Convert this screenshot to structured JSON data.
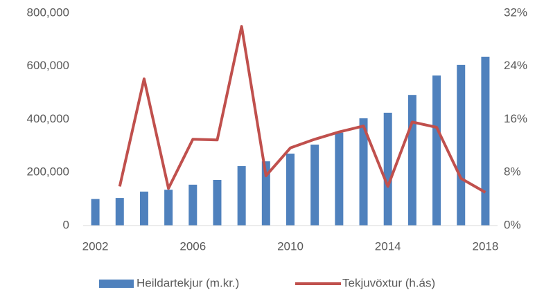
{
  "chart_data": {
    "type": "bar-line",
    "x": [
      2002,
      2003,
      2004,
      2005,
      2006,
      2007,
      2008,
      2009,
      2010,
      2011,
      2012,
      2013,
      2014,
      2015,
      2016,
      2017,
      2018
    ],
    "xlim": [
      2001.5,
      2018.5
    ],
    "xticks": [
      2002,
      2006,
      2010,
      2014,
      2018
    ],
    "ylim": [
      0,
      800000
    ],
    "yticks": [
      0,
      {
        "value": 200000,
        "label": "200,000"
      },
      {
        "value": 400000,
        "label": "400,000"
      },
      {
        "value": 600000,
        "label": "600,000"
      },
      {
        "value": 800000,
        "label": "800,000"
      }
    ],
    "y2lim": [
      0,
      32
    ],
    "y2ticks": [
      {
        "value": 0,
        "label": "0%"
      },
      {
        "value": 8,
        "label": "8%"
      },
      {
        "value": 16,
        "label": "16%"
      },
      {
        "value": 24,
        "label": "24%"
      },
      {
        "value": 32,
        "label": "32%"
      }
    ],
    "legend": "bottom",
    "series": [
      {
        "name": "Heildartekjur (m.kr.)",
        "type": "bar",
        "color": "#4f81bd",
        "values": [
          100000,
          104000,
          128000,
          135000,
          154000,
          172000,
          224000,
          242000,
          271000,
          305000,
          350000,
          404000,
          425000,
          492000,
          565000,
          605000,
          636000
        ]
      },
      {
        "name": "Tekjuvöxtur (h.ás)",
        "type": "line",
        "axis": "y2",
        "color": "#c0504d",
        "values": [
          null,
          5.9,
          22.1,
          5.6,
          13.0,
          12.9,
          30.0,
          7.5,
          11.7,
          13.0,
          14.1,
          15.0,
          5.9,
          15.6,
          14.8,
          7.1,
          5.0
        ]
      }
    ]
  }
}
